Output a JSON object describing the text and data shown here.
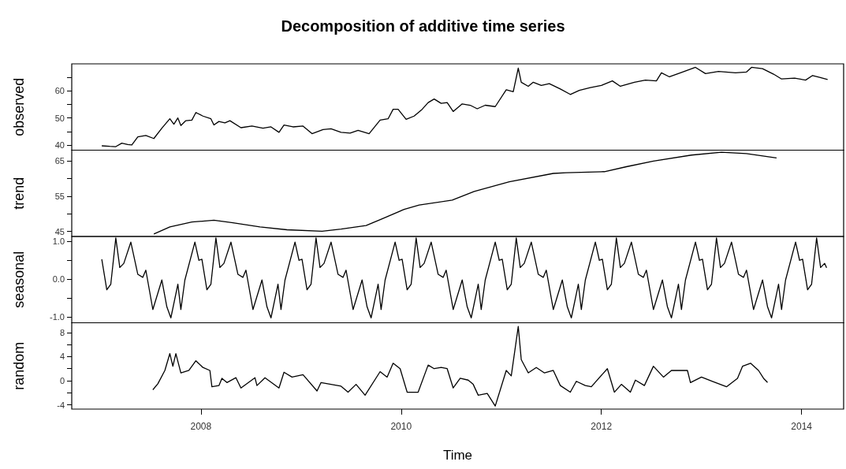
{
  "chart_data": [
    {
      "type": "line",
      "title": "Decomposition of additive time series",
      "ylabel": "observed",
      "color": "#000000",
      "tick_labels": "y",
      "xlim": [
        2006.71,
        2014.42
      ],
      "ylim": [
        38.1,
        70
      ],
      "yticks": [
        40,
        {
          "value": 45,
          "label": null
        },
        50,
        {
          "value": 55,
          "label": null
        },
        60,
        {
          "value": 65,
          "label": null
        }
      ],
      "x": [
        2007.01,
        2007.09,
        2007.15,
        2007.21,
        2007.27,
        2007.31,
        2007.37,
        2007.45,
        2007.53,
        2007.61,
        2007.69,
        2007.73,
        2007.77,
        2007.8,
        2007.85,
        2007.91,
        2007.95,
        2008.02,
        2008.1,
        2008.13,
        2008.18,
        2008.24,
        2008.29,
        2008.4,
        2008.51,
        2008.62,
        2008.7,
        2008.78,
        2008.83,
        2008.92,
        2009.02,
        2009.11,
        2009.22,
        2009.3,
        2009.4,
        2009.49,
        2009.57,
        2009.68,
        2009.79,
        2009.87,
        2009.92,
        2009.97,
        2010.05,
        2010.13,
        2010.21,
        2010.27,
        2010.33,
        2010.4,
        2010.46,
        2010.52,
        2010.61,
        2010.69,
        2010.76,
        2010.84,
        2010.94,
        2011.05,
        2011.12,
        2011.17,
        2011.2,
        2011.27,
        2011.32,
        2011.4,
        2011.48,
        2011.59,
        2011.69,
        2011.78,
        2011.89,
        2012.0,
        2012.11,
        2012.19,
        2012.33,
        2012.44,
        2012.55,
        2012.6,
        2012.68,
        2012.79,
        2012.94,
        2013.04,
        2013.17,
        2013.34,
        2013.45,
        2013.5,
        2013.61,
        2013.72,
        2013.8,
        2013.93,
        2014.04,
        2014.11,
        2014.18,
        2014.26
      ],
      "values": [
        39.7,
        39.5,
        39.4,
        40.7,
        40.2,
        40.0,
        43.0,
        43.5,
        42.4,
        46.2,
        49.7,
        47.7,
        50,
        47.2,
        49,
        49.2,
        52,
        50.7,
        49.7,
        47.4,
        48.7,
        48.2,
        49,
        46.4,
        47,
        46.2,
        46.7,
        44.7,
        47.4,
        46.7,
        47,
        44.2,
        45.7,
        46,
        44.7,
        44.4,
        45.4,
        44.2,
        49.2,
        49.7,
        53.2,
        53.2,
        49.5,
        50.7,
        53.2,
        55.7,
        57,
        55.4,
        55.7,
        52.4,
        55.2,
        54.7,
        53.4,
        54.7,
        54.2,
        60.4,
        59.7,
        68.4,
        63.2,
        61.7,
        63.2,
        62,
        62.7,
        60.7,
        58.7,
        60.2,
        61.2,
        62,
        63.7,
        61.7,
        63.2,
        64,
        63.7,
        66.7,
        65.2,
        66.7,
        68.7,
        66.4,
        67.2,
        66.7,
        67,
        68.7,
        68.2,
        66.2,
        64.4,
        64.7,
        64,
        65.7,
        65,
        64.2
      ]
    },
    {
      "type": "line",
      "ylabel": "trend",
      "color": "#000000",
      "tick_labels": "y",
      "xlim": [
        2006.71,
        2014.42
      ],
      "ylim": [
        43.6,
        68.1
      ],
      "yticks": [
        45,
        {
          "value": 50,
          "label": null
        },
        55,
        {
          "value": 60,
          "label": null
        },
        65
      ],
      "x": [
        2007.53,
        2007.69,
        2007.91,
        2008.13,
        2008.32,
        2008.59,
        2008.86,
        2009.21,
        2009.4,
        2009.65,
        2009.81,
        2010.03,
        2010.18,
        2010.51,
        2010.73,
        2011.08,
        2011.52,
        2011.65,
        2012.03,
        2012.25,
        2012.52,
        2012.9,
        2013.2,
        2013.45,
        2013.75
      ],
      "values": [
        44.3,
        46.3,
        47.7,
        48.2,
        47.5,
        46.3,
        45.5,
        45.1,
        45.7,
        46.7,
        48.6,
        51.3,
        52.5,
        53.9,
        56.4,
        59.1,
        61.5,
        61.7,
        62,
        63.4,
        65,
        66.7,
        67.5,
        67.1,
        65.9
      ]
    },
    {
      "type": "line",
      "ylabel": "seasonal",
      "color": "#000000",
      "tick_labels": "y",
      "xlim": [
        2006.71,
        2014.42
      ],
      "ylim": [
        -1.15,
        1.13
      ],
      "yticks": [
        {
          "value": -1,
          "label": "-1.0"
        },
        {
          "value": -0.5,
          "label": null
        },
        {
          "value": 0,
          "label": "0.0"
        },
        {
          "value": 0.5,
          "label": null
        },
        {
          "value": 1,
          "label": "1.0"
        }
      ],
      "x": [
        2007.01,
        2007.06,
        2007.1,
        2007.15,
        2007.19,
        2007.23,
        2007.3,
        2007.37,
        2007.42,
        2007.45,
        2007.52,
        2007.61,
        2007.66,
        2007.7,
        2007.77,
        2007.8,
        2007.84,
        2007.94,
        2007.98,
        2008.01,
        2008.06,
        2008.1,
        2008.15,
        2008.19,
        2008.23,
        2008.3,
        2008.37,
        2008.42,
        2008.45,
        2008.52,
        2008.61,
        2008.66,
        2008.7,
        2008.77,
        2008.8,
        2008.84,
        2008.94,
        2008.98,
        2009.01,
        2009.06,
        2009.1,
        2009.15,
        2009.19,
        2009.23,
        2009.3,
        2009.37,
        2009.42,
        2009.45,
        2009.52,
        2009.61,
        2009.66,
        2009.7,
        2009.77,
        2009.8,
        2009.84,
        2009.94,
        2009.98,
        2010.01,
        2010.06,
        2010.1,
        2010.15,
        2010.19,
        2010.23,
        2010.3,
        2010.37,
        2010.42,
        2010.45,
        2010.52,
        2010.61,
        2010.66,
        2010.7,
        2010.77,
        2010.8,
        2010.84,
        2010.94,
        2010.98,
        2011.01,
        2011.06,
        2011.1,
        2011.15,
        2011.19,
        2011.23,
        2011.3,
        2011.37,
        2011.42,
        2011.45,
        2011.52,
        2011.61,
        2011.66,
        2011.7,
        2011.77,
        2011.8,
        2011.84,
        2011.94,
        2011.98,
        2012.01,
        2012.06,
        2012.1,
        2012.15,
        2012.19,
        2012.23,
        2012.3,
        2012.37,
        2012.42,
        2012.45,
        2012.52,
        2012.61,
        2012.66,
        2012.7,
        2012.77,
        2012.8,
        2012.84,
        2012.94,
        2012.98,
        2013.01,
        2013.06,
        2013.1,
        2013.15,
        2013.19,
        2013.23,
        2013.3,
        2013.37,
        2013.42,
        2013.45,
        2013.52,
        2013.61,
        2013.66,
        2013.7,
        2013.77,
        2013.8,
        2013.84,
        2013.94,
        2013.98,
        2014.01,
        2014.06,
        2014.1,
        2014.15,
        2014.19,
        2014.23,
        2014.25
      ],
      "values": [
        0.53,
        -0.28,
        -0.13,
        1.09,
        0.31,
        0.42,
        0.98,
        0.13,
        0.05,
        0.24,
        -0.8,
        -0.02,
        -0.73,
        -1.02,
        -0.13,
        -0.8,
        -0.02,
        0.98,
        0.5,
        0.53,
        -0.28,
        -0.13,
        1.09,
        0.31,
        0.42,
        0.98,
        0.13,
        0.05,
        0.24,
        -0.8,
        -0.02,
        -0.73,
        -1.02,
        -0.13,
        -0.8,
        -0.02,
        0.98,
        0.5,
        0.53,
        -0.28,
        -0.13,
        1.09,
        0.31,
        0.42,
        0.98,
        0.13,
        0.05,
        0.24,
        -0.8,
        -0.02,
        -0.73,
        -1.02,
        -0.13,
        -0.8,
        -0.02,
        0.98,
        0.5,
        0.53,
        -0.28,
        -0.13,
        1.09,
        0.31,
        0.42,
        0.98,
        0.13,
        0.05,
        0.24,
        -0.8,
        -0.02,
        -0.73,
        -1.02,
        -0.13,
        -0.8,
        -0.02,
        0.98,
        0.5,
        0.53,
        -0.28,
        -0.13,
        1.09,
        0.31,
        0.42,
        0.98,
        0.13,
        0.05,
        0.24,
        -0.8,
        -0.02,
        -0.73,
        -1.02,
        -0.13,
        -0.8,
        -0.02,
        0.98,
        0.5,
        0.53,
        -0.28,
        -0.13,
        1.09,
        0.31,
        0.42,
        0.98,
        0.13,
        0.05,
        0.24,
        -0.8,
        -0.02,
        -0.73,
        -1.02,
        -0.13,
        -0.8,
        -0.02,
        0.98,
        0.5,
        0.53,
        -0.28,
        -0.13,
        1.09,
        0.31,
        0.42,
        0.98,
        0.13,
        0.05,
        0.24,
        -0.8,
        -0.02,
        -0.73,
        -1.02,
        -0.13,
        -0.8,
        -0.02,
        0.98,
        0.5,
        0.53,
        -0.28,
        -0.13,
        1.09,
        0.31,
        0.42,
        0.3
      ]
    },
    {
      "type": "line",
      "ylabel": "random",
      "xlabel": "Time",
      "color": "#000000",
      "xlim": [
        2006.71,
        2014.42
      ],
      "xticks": [
        2008,
        2010,
        2012,
        2014
      ],
      "ylim": [
        -4.7,
        9.6
      ],
      "yticks": [
        -4,
        {
          "value": -2,
          "label": null
        },
        0,
        {
          "value": 2,
          "label": null
        },
        4,
        {
          "value": 6,
          "label": null
        },
        8
      ],
      "x": [
        2007.52,
        2007.57,
        2007.64,
        2007.69,
        2007.72,
        2007.75,
        2007.8,
        2007.88,
        2007.95,
        2008.02,
        2008.09,
        2008.11,
        2008.18,
        2008.21,
        2008.26,
        2008.35,
        2008.4,
        2008.54,
        2008.56,
        2008.64,
        2008.78,
        2008.83,
        2008.91,
        2009.02,
        2009.16,
        2009.2,
        2009.4,
        2009.47,
        2009.55,
        2009.64,
        2009.79,
        2009.86,
        2009.92,
        2009.99,
        2010.06,
        2010.17,
        2010.27,
        2010.33,
        2010.4,
        2010.46,
        2010.52,
        2010.59,
        2010.67,
        2010.72,
        2010.77,
        2010.86,
        2010.94,
        2011.05,
        2011.1,
        2011.17,
        2011.2,
        2011.27,
        2011.35,
        2011.43,
        2011.52,
        2011.59,
        2011.69,
        2011.75,
        2011.84,
        2011.9,
        2012.06,
        2012.13,
        2012.2,
        2012.29,
        2012.34,
        2012.43,
        2012.52,
        2012.62,
        2012.7,
        2012.78,
        2012.86,
        2012.89,
        2013.0,
        2013.11,
        2013.25,
        2013.36,
        2013.41,
        2013.49,
        2013.57,
        2013.62,
        2013.66
      ],
      "values": [
        -1.5,
        -0.5,
        1.7,
        4.5,
        2.4,
        4.5,
        1.3,
        1.7,
        3.3,
        2.2,
        1.7,
        -1.0,
        -0.8,
        0.4,
        -0.3,
        0.5,
        -1.2,
        0.5,
        -0.8,
        0.5,
        -1.2,
        1.4,
        0.6,
        1.0,
        -1.7,
        -0.3,
        -0.9,
        -1.9,
        -0.6,
        -2.4,
        1.5,
        0.6,
        2.9,
        2.0,
        -1.9,
        -1.9,
        2.6,
        2.0,
        2.2,
        2.0,
        -1.2,
        0.4,
        0.1,
        -0.6,
        -2.4,
        -2.1,
        -4.2,
        1.7,
        0.8,
        9.0,
        3.5,
        1.3,
        2.2,
        1.3,
        1.7,
        -0.8,
        -1.9,
        -0.1,
        -0.8,
        -1.0,
        2.0,
        -1.9,
        -0.6,
        -1.9,
        0.1,
        -0.8,
        2.4,
        0.6,
        1.7,
        1.7,
        1.7,
        -0.3,
        0.6,
        -0.1,
        -1.0,
        0.4,
        2.4,
        2.9,
        1.7,
        0.4,
        -0.3
      ]
    }
  ]
}
